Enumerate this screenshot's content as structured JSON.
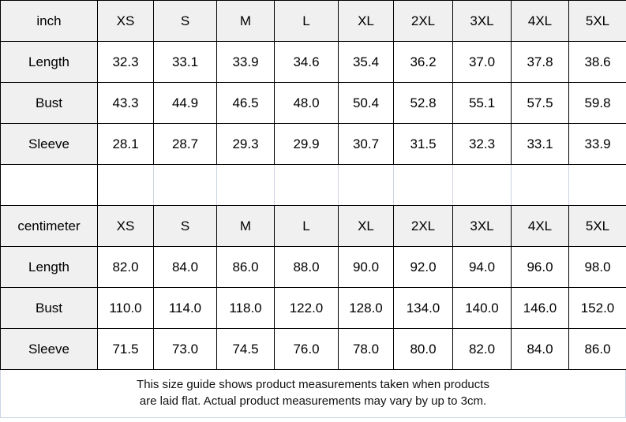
{
  "colors": {
    "header_bg": "#f0f0f0",
    "grid_border": "#000000",
    "light_border": "#ccd3e2",
    "text": "#000000"
  },
  "size_columns": [
    "XS",
    "S",
    "M",
    "L",
    "XL",
    "2XL",
    "3XL",
    "4XL",
    "5XL"
  ],
  "sections": [
    {
      "unit_label": "inch",
      "rows": [
        {
          "label": "Length",
          "values": [
            "32.3",
            "33.1",
            "33.9",
            "34.6",
            "35.4",
            "36.2",
            "37.0",
            "37.8",
            "38.6"
          ]
        },
        {
          "label": "Bust",
          "values": [
            "43.3",
            "44.9",
            "46.5",
            "48.0",
            "50.4",
            "52.8",
            "55.1",
            "57.5",
            "59.8"
          ]
        },
        {
          "label": "Sleeve",
          "values": [
            "28.1",
            "28.7",
            "29.3",
            "29.9",
            "30.7",
            "31.5",
            "32.3",
            "33.1",
            "33.9"
          ]
        }
      ]
    },
    {
      "unit_label": "centimeter",
      "rows": [
        {
          "label": "Length",
          "values": [
            "82.0",
            "84.0",
            "86.0",
            "88.0",
            "90.0",
            "92.0",
            "94.0",
            "96.0",
            "98.0"
          ]
        },
        {
          "label": "Bust",
          "values": [
            "110.0",
            "114.0",
            "118.0",
            "122.0",
            "128.0",
            "134.0",
            "140.0",
            "146.0",
            "152.0"
          ]
        },
        {
          "label": "Sleeve",
          "values": [
            "71.5",
            "73.0",
            "74.5",
            "76.0",
            "78.0",
            "80.0",
            "82.0",
            "84.0",
            "86.0"
          ]
        }
      ]
    }
  ],
  "footer": {
    "line1": "This size guide shows product measurements taken when products",
    "line2": "are laid flat. Actual product measurements may vary by up to 3cm."
  }
}
